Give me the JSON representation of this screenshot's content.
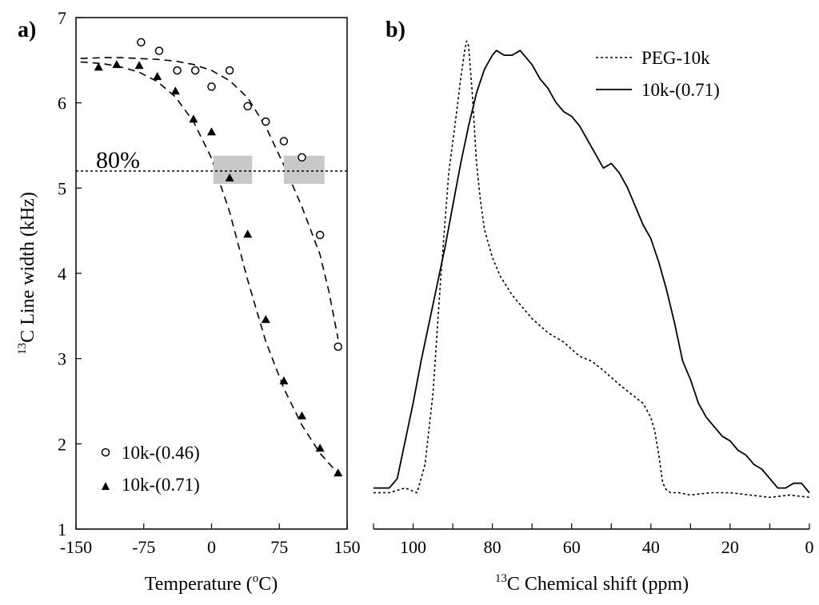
{
  "chart_data": [
    {
      "type": "scatter",
      "panel_label": "a)",
      "xlabel": {
        "main": "Temperature (",
        "sup": "o",
        "tail": "C)"
      },
      "ylabel": {
        "sup": "13",
        "main": "C Line width (kHz)"
      },
      "xlim": [
        -150,
        150
      ],
      "ylim": [
        1,
        7
      ],
      "xticks": [
        "-150",
        "-75",
        "0",
        "75",
        "150"
      ],
      "xtick_values": [
        -150,
        -75,
        0,
        75,
        150
      ],
      "yticks": [
        "1",
        "2",
        "3",
        "4",
        "5",
        "6",
        "7"
      ],
      "ytick_values": [
        1,
        2,
        3,
        4,
        5,
        6,
        7
      ],
      "series": [
        {
          "name": "10k-(0.46)",
          "marker": "circle-open",
          "x": [
            -78,
            -58,
            -38,
            -18,
            0,
            20,
            40,
            60,
            80,
            100,
            120,
            140
          ],
          "y": [
            6.71,
            6.61,
            6.38,
            6.38,
            6.19,
            6.38,
            5.96,
            5.78,
            5.55,
            5.36,
            4.45,
            3.14
          ],
          "fit_x": [
            -145,
            -120,
            -100,
            -80,
            -60,
            -40,
            -20,
            0,
            20,
            40,
            60,
            80,
            100,
            120,
            130,
            140
          ],
          "fit_y": [
            6.52,
            6.53,
            6.53,
            6.52,
            6.51,
            6.49,
            6.45,
            6.38,
            6.26,
            6.06,
            5.72,
            5.27,
            4.78,
            4.22,
            3.78,
            3.23
          ]
        },
        {
          "name": "10k-(0.71)",
          "marker": "triangle-filled",
          "x": [
            -125,
            -105,
            -80,
            -60,
            -40,
            -20,
            0,
            20,
            40,
            60,
            80,
            100,
            120,
            140
          ],
          "y": [
            6.42,
            6.45,
            6.44,
            6.31,
            6.14,
            5.81,
            5.66,
            5.12,
            4.46,
            3.46,
            2.74,
            2.33,
            1.95,
            1.66
          ],
          "fit_x": [
            -145,
            -120,
            -100,
            -80,
            -60,
            -40,
            -20,
            0,
            20,
            40,
            60,
            80,
            100,
            120,
            140
          ],
          "fit_y": [
            6.48,
            6.46,
            6.42,
            6.36,
            6.25,
            6.07,
            5.78,
            5.35,
            4.72,
            3.92,
            3.2,
            2.65,
            2.22,
            1.89,
            1.65
          ]
        }
      ],
      "reference_line": {
        "y": 5.2,
        "label": "80%",
        "style": "dotted"
      },
      "highlight_boxes": [
        {
          "x": [
            2,
            45
          ],
          "y": [
            5.05,
            5.38
          ]
        },
        {
          "x": [
            80,
            125
          ],
          "y": [
            5.05,
            5.38
          ]
        }
      ],
      "legend_position": "bottom-left",
      "grid": false
    },
    {
      "type": "line",
      "panel_label": "b)",
      "xlabel": {
        "sup": "13",
        "main": "C Chemical shift (ppm)"
      },
      "ylabel": "",
      "xlim": [
        110,
        0
      ],
      "xticks": [
        "100",
        "80",
        "60",
        "40",
        "20",
        "0"
      ],
      "xtick_values": [
        100,
        80,
        60,
        40,
        20,
        0
      ],
      "ylim": [
        0,
        1.05
      ],
      "series": [
        {
          "name": "PEG-10k",
          "style": "dotted",
          "x": [
            110,
            106,
            102,
            99,
            97,
            95,
            93,
            91,
            89,
            88,
            87,
            86.5,
            86,
            85,
            84,
            83,
            82,
            80,
            78,
            75,
            72,
            70,
            66,
            62,
            58,
            55,
            52,
            48,
            45,
            42,
            40,
            39,
            38,
            37.5,
            37,
            36,
            35,
            33,
            30,
            25,
            20,
            15,
            10,
            5,
            0
          ],
          "y": [
            0.04,
            0.04,
            0.05,
            0.04,
            0.1,
            0.25,
            0.5,
            0.72,
            0.85,
            0.92,
            0.98,
            1.0,
            0.99,
            0.88,
            0.74,
            0.66,
            0.6,
            0.54,
            0.5,
            0.46,
            0.43,
            0.41,
            0.38,
            0.36,
            0.33,
            0.32,
            0.3,
            0.27,
            0.25,
            0.23,
            0.2,
            0.17,
            0.12,
            0.09,
            0.06,
            0.045,
            0.04,
            0.04,
            0.035,
            0.04,
            0.04,
            0.035,
            0.03,
            0.035,
            0.03
          ]
        },
        {
          "name": "10k-(0.71)",
          "style": "solid",
          "x": [
            110,
            106,
            104,
            102,
            100,
            98,
            96,
            94,
            92,
            90,
            88,
            86,
            84,
            82,
            80,
            79,
            77,
            75,
            73,
            72,
            70,
            68,
            66,
            64,
            62,
            60,
            58,
            56,
            54,
            52,
            50,
            48,
            46,
            44,
            42,
            40,
            38,
            36,
            34,
            32,
            30,
            28,
            26,
            24,
            22,
            20,
            18,
            16,
            14,
            12,
            10,
            8,
            6,
            4,
            2,
            0
          ],
          "y": [
            0.05,
            0.05,
            0.07,
            0.15,
            0.23,
            0.32,
            0.4,
            0.48,
            0.56,
            0.65,
            0.74,
            0.82,
            0.89,
            0.94,
            0.97,
            0.98,
            0.97,
            0.97,
            0.98,
            0.97,
            0.95,
            0.92,
            0.9,
            0.87,
            0.85,
            0.84,
            0.82,
            0.79,
            0.76,
            0.73,
            0.74,
            0.72,
            0.69,
            0.65,
            0.61,
            0.58,
            0.53,
            0.47,
            0.4,
            0.32,
            0.28,
            0.23,
            0.2,
            0.18,
            0.16,
            0.15,
            0.13,
            0.12,
            0.1,
            0.09,
            0.07,
            0.05,
            0.05,
            0.06,
            0.06,
            0.04
          ]
        }
      ],
      "legend_position": "top-right",
      "grid": false
    }
  ]
}
